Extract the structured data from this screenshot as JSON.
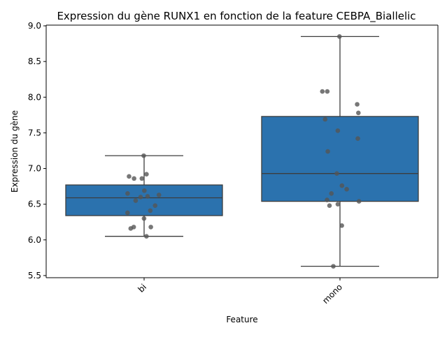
{
  "chart_data": {
    "type": "box",
    "title": "Expression du gène RUNX1 en fonction de la feature CEBPA_Biallelic",
    "xlabel": "Feature",
    "ylabel": "Expression du gène",
    "categories": [
      "bi",
      "mono"
    ],
    "ylim": [
      5.47,
      9.01
    ],
    "yticks": [
      5.5,
      6.0,
      6.5,
      7.0,
      7.5,
      8.0,
      8.5,
      9.0
    ],
    "box_color": "#2b72ae",
    "point_color": "#555555",
    "boxes": [
      {
        "category": "bi",
        "whisker_low": 6.05,
        "q1": 6.34,
        "median": 6.59,
        "q3": 6.77,
        "whisker_high": 7.18
      },
      {
        "category": "mono",
        "whisker_low": 5.63,
        "q1": 6.54,
        "median": 6.93,
        "q3": 7.73,
        "whisker_high": 8.85
      }
    ],
    "points": [
      {
        "category": "bi",
        "values": [
          7.18,
          6.92,
          6.89,
          6.86,
          6.86,
          6.69,
          6.65,
          6.63,
          6.61,
          6.6,
          6.55,
          6.48,
          6.41,
          6.38,
          6.3,
          6.18,
          6.18,
          6.16,
          6.05
        ]
      },
      {
        "category": "mono",
        "values": [
          8.85,
          8.08,
          8.08,
          7.9,
          7.78,
          7.69,
          7.53,
          7.42,
          7.24,
          6.93,
          6.76,
          6.71,
          6.65,
          6.56,
          6.54,
          6.5,
          6.48,
          6.2,
          5.63
        ]
      }
    ]
  }
}
